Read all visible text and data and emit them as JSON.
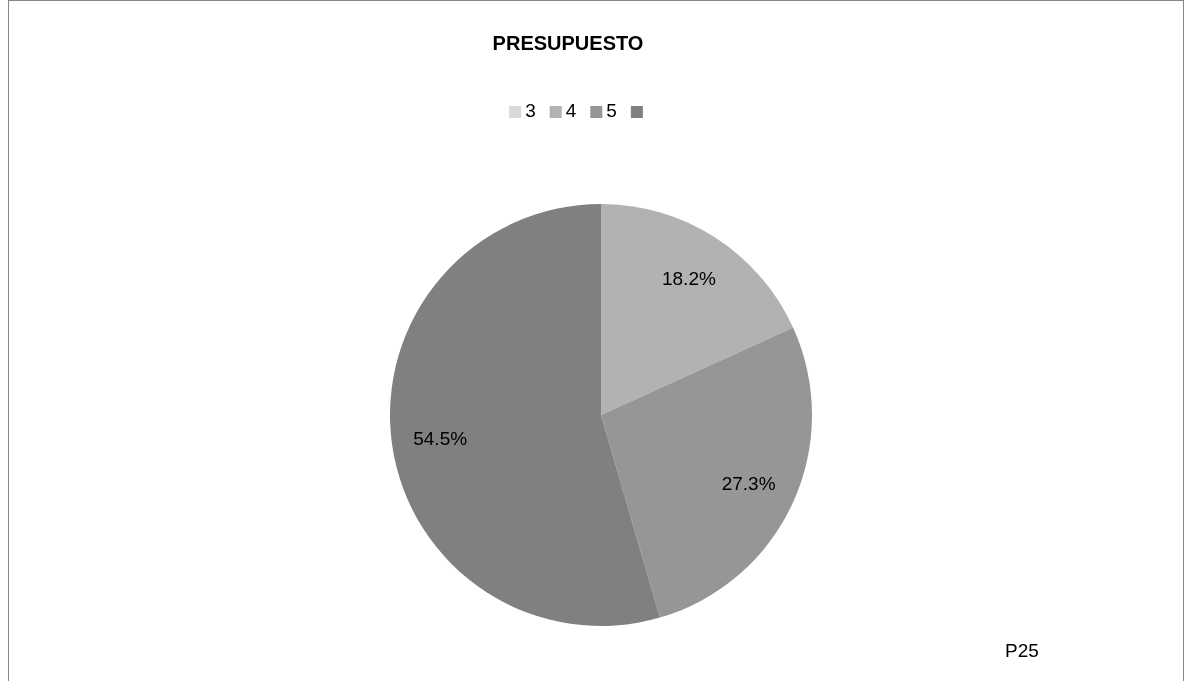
{
  "chart_data": {
    "type": "pie",
    "title": "PRESUPUESTO",
    "categories": [
      "3",
      "4",
      "5",
      null
    ],
    "values": [
      0,
      18.2,
      27.3,
      54.5
    ],
    "colors": [
      "#d9d9d9",
      "#b2b2b2",
      "#969696",
      "#808080"
    ],
    "value_labels": [
      null,
      "18.2%",
      "27.3%",
      "54.5%"
    ],
    "legend": "top",
    "annotations": [
      "P25"
    ]
  }
}
